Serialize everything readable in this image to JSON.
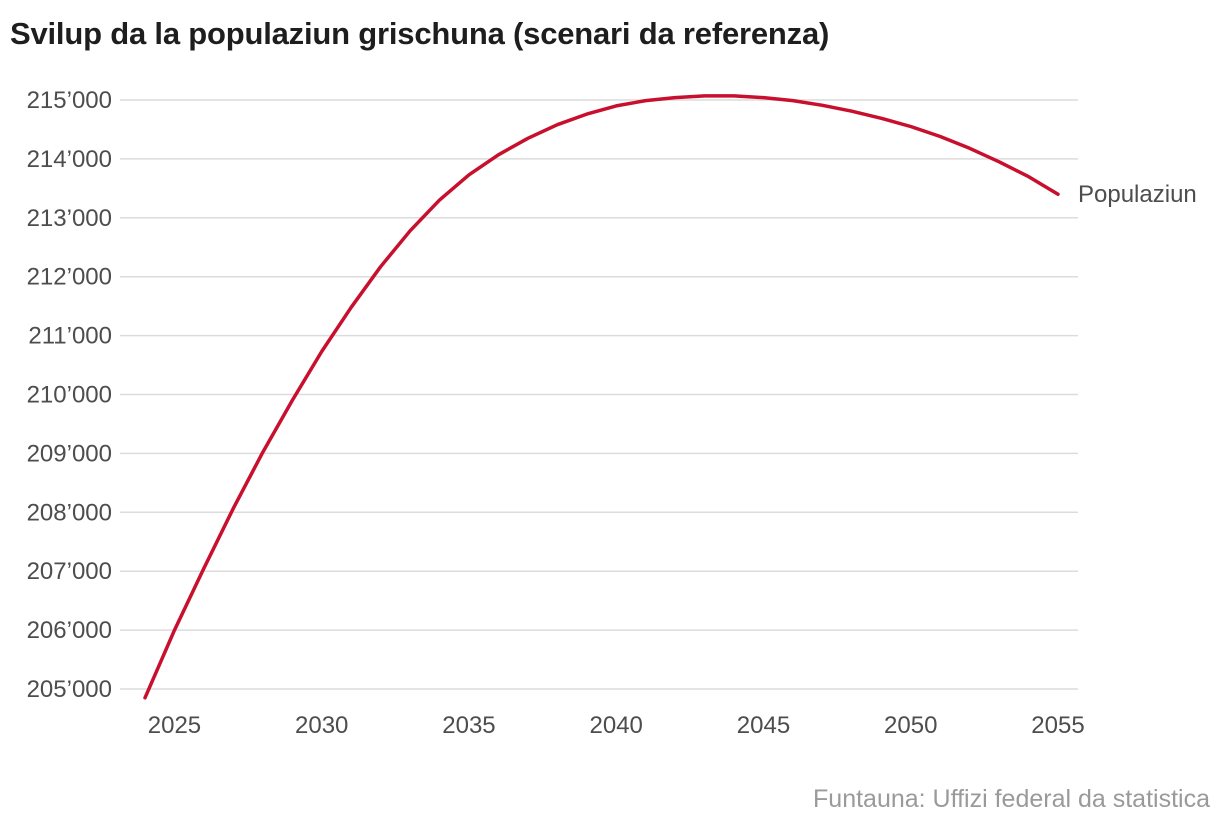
{
  "title": "Svilup da la populaziun grischuna (scenari da referenza)",
  "source": "Funtauna: Uffizi federal da statistica",
  "colors": {
    "line": "#c8102e",
    "grid": "#dcdcdc",
    "text": "#4d4d4d",
    "title": "#1e1e1e",
    "source": "#9a9a9a"
  },
  "chart_data": {
    "type": "line",
    "title": "Svilup da la populaziun grischuna (scenari da referenza)",
    "xlabel": "",
    "ylabel": "",
    "xlim": [
      2024,
      2055
    ],
    "ylim": [
      205000,
      215000
    ],
    "grid": true,
    "x_ticks": [
      2025,
      2030,
      2035,
      2040,
      2045,
      2050,
      2055
    ],
    "x_tick_labels": [
      "2025",
      "2030",
      "2035",
      "2040",
      "2045",
      "2050",
      "2055"
    ],
    "y_ticks": [
      205000,
      206000,
      207000,
      208000,
      209000,
      210000,
      211000,
      212000,
      213000,
      214000,
      215000
    ],
    "y_tick_labels": [
      "205’000",
      "206’000",
      "207’000",
      "208’000",
      "209’000",
      "210’000",
      "211’000",
      "212’000",
      "213’000",
      "214’000",
      "215’000"
    ],
    "x": [
      2024,
      2025,
      2026,
      2027,
      2028,
      2029,
      2030,
      2031,
      2032,
      2033,
      2034,
      2035,
      2036,
      2037,
      2038,
      2039,
      2040,
      2041,
      2042,
      2043,
      2044,
      2045,
      2046,
      2047,
      2048,
      2049,
      2050,
      2051,
      2052,
      2053,
      2054,
      2055
    ],
    "series": [
      {
        "name": "Populaziun",
        "values": [
          204850,
          206000,
          207050,
          208070,
          209020,
          209900,
          210730,
          211480,
          212170,
          212780,
          213300,
          213730,
          214070,
          214350,
          214580,
          214760,
          214900,
          214990,
          215040,
          215070,
          215070,
          215040,
          214990,
          214910,
          214810,
          214690,
          214550,
          214380,
          214180,
          213950,
          213700,
          213400
        ]
      }
    ]
  }
}
